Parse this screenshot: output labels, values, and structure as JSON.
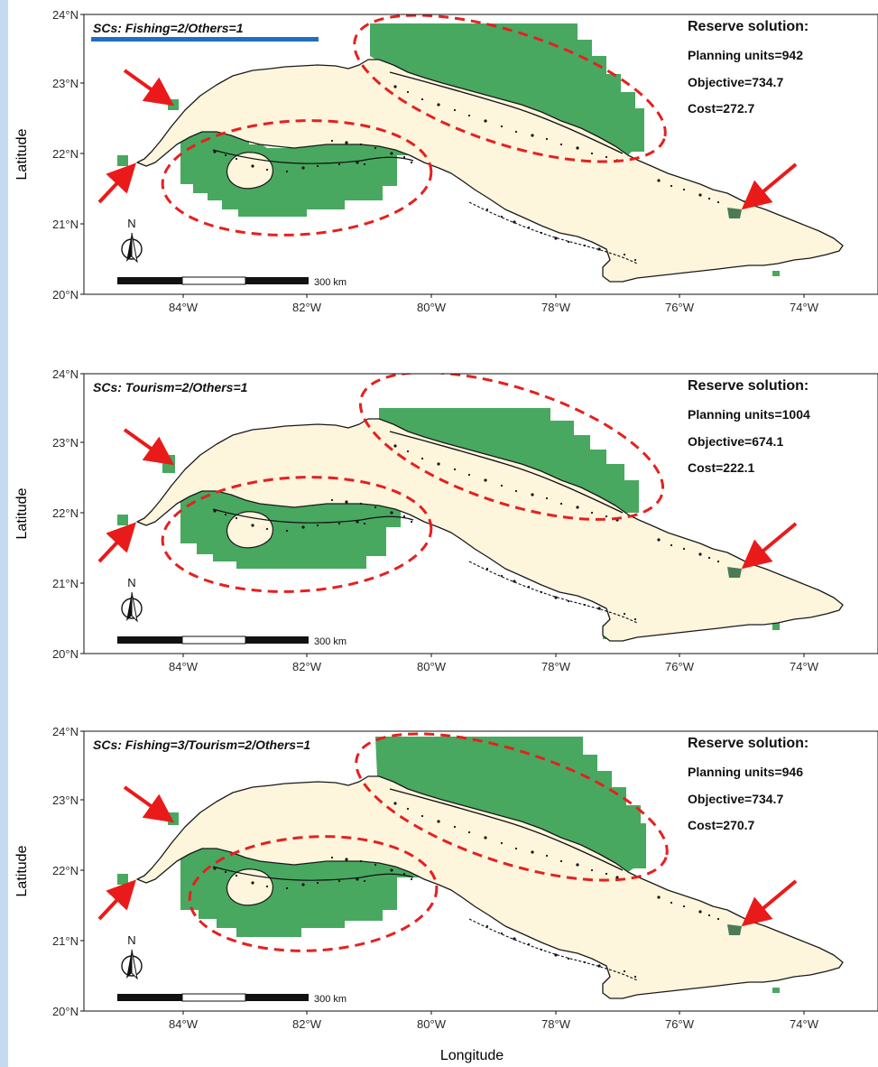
{
  "axes": {
    "y_label": "Latitude",
    "x_label": "Longitude",
    "lat_ticks": [
      "24°N",
      "23°N",
      "22°N",
      "21°N",
      "20°N"
    ],
    "lon_ticks": [
      "84°W",
      "82°W",
      "80°W",
      "78°W",
      "76°W",
      "74°W"
    ]
  },
  "map_legend": {
    "north": "N",
    "scale_label": "300 km"
  },
  "colors": {
    "land": "#fdf5dc",
    "reserve": "#48a860",
    "ellipse": "#e52020",
    "arrow": "#ea1a1a",
    "highlight_bar": "#1f6fbf"
  },
  "panels": [
    {
      "scenario": "SCs: Fishing=2/Others=1",
      "stats_title": "Reserve solution:",
      "planning_units": "Planning units=942",
      "objective": "Objective=734.7",
      "cost": "Cost=272.7",
      "highlighted": true
    },
    {
      "scenario": "SCs: Tourism=2/Others=1",
      "stats_title": "Reserve solution:",
      "planning_units": "Planning units=1004",
      "objective": "Objective=674.1",
      "cost": "Cost=222.1",
      "highlighted": false
    },
    {
      "scenario": "SCs: Fishing=3/Tourism=2/Others=1",
      "stats_title": "Reserve solution:",
      "planning_units": "Planning units=946",
      "objective": "Objective=734.7",
      "cost": "Cost=270.7",
      "highlighted": false
    }
  ]
}
